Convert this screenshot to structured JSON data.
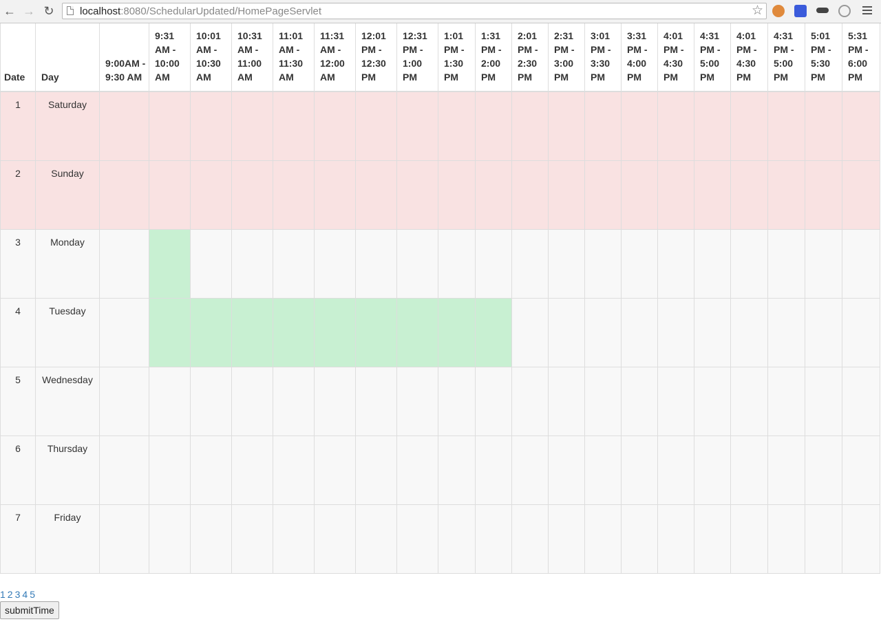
{
  "browser": {
    "url_host": "localhost",
    "url_rest": ":8080/SchedularUpdated/HomePageServlet"
  },
  "table": {
    "date_header": "Date",
    "day_header": "Day",
    "slots": [
      "9:00AM - 9:30 AM",
      "9:31 AM - 10:00 AM",
      "10:01 AM - 10:30 AM",
      "10:31 AM - 11:00 AM",
      "11:01 AM - 11:30 AM",
      "11:31 AM - 12:00 AM",
      "12:01 PM - 12:30 PM",
      "12:31 PM - 1:00 PM",
      "1:01 PM - 1:30 PM",
      "1:31 PM - 2:00 PM",
      "2:01 PM - 2:30 PM",
      "2:31 PM - 3:00 PM",
      "3:01 PM - 3:30 PM",
      "3:31 PM - 4:00 PM",
      "4:01 PM - 4:30 PM",
      "4:31 PM - 5:00 PM",
      "4:01 PM - 4:30 PM",
      "4:31 PM - 5:00 PM",
      "5:01 PM - 5:30 PM",
      "5:31 PM - 6:00 PM"
    ],
    "rows": [
      {
        "date": "1",
        "day": "Saturday",
        "weekend": true,
        "busy": []
      },
      {
        "date": "2",
        "day": "Sunday",
        "weekend": true,
        "busy": []
      },
      {
        "date": "3",
        "day": "Monday",
        "weekend": false,
        "busy": [
          1
        ]
      },
      {
        "date": "4",
        "day": "Tuesday",
        "weekend": false,
        "busy": [
          1,
          2,
          3,
          4,
          5,
          6,
          7,
          8,
          9
        ]
      },
      {
        "date": "5",
        "day": "Wednesday",
        "weekend": false,
        "busy": []
      },
      {
        "date": "6",
        "day": "Thursday",
        "weekend": false,
        "busy": []
      },
      {
        "date": "7",
        "day": "Friday",
        "weekend": false,
        "busy": []
      }
    ]
  },
  "colors": {
    "weekend_row": "#f9e2e2",
    "busy_slot": "#c8f0d2",
    "link": "#337ab7"
  },
  "pager": [
    "1",
    "2",
    "3",
    "4",
    "5"
  ],
  "submit_label": "submitTime"
}
